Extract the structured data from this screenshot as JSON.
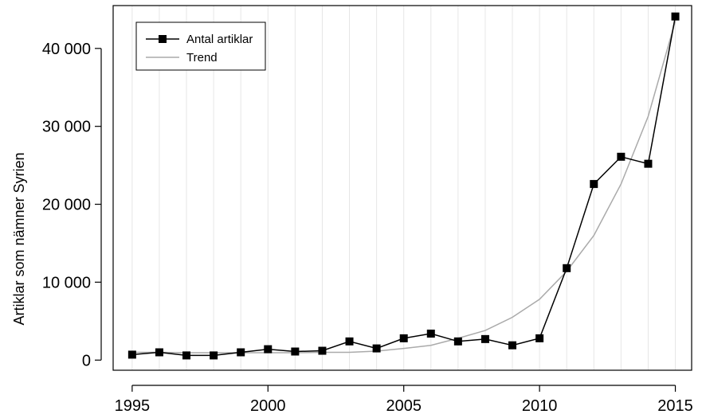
{
  "chart_data": {
    "type": "line",
    "title": "",
    "xlabel": "",
    "ylabel": "Artiklar som nämner Syrien",
    "x": [
      1995,
      1996,
      1997,
      1998,
      1999,
      2000,
      2001,
      2002,
      2003,
      2004,
      2005,
      2006,
      2007,
      2008,
      2009,
      2010,
      2011,
      2012,
      2013,
      2014,
      2015
    ],
    "series": [
      {
        "name": "Antal artiklar",
        "color": "#000000",
        "marker": "square",
        "values": [
          700,
          1000,
          600,
          600,
          1000,
          1400,
          1100,
          1200,
          2400,
          1500,
          2800,
          3400,
          2400,
          2700,
          1900,
          2800,
          11800,
          22600,
          26100,
          25200,
          44100
        ]
      },
      {
        "name": "Trend",
        "color": "#aaaaaa",
        "marker": "none",
        "values": [
          1000,
          1000,
          950,
          950,
          950,
          950,
          950,
          1000,
          1000,
          1150,
          1500,
          1900,
          2800,
          3800,
          5500,
          7800,
          11400,
          16000,
          22600,
          31300,
          43500
        ]
      }
    ],
    "xlim": [
      1994.3,
      2015.6
    ],
    "ylim": [
      -1300,
      45500
    ],
    "xticks": [
      1995,
      2000,
      2005,
      2010,
      2015
    ],
    "yticks": [
      0,
      10000,
      20000,
      30000,
      40000
    ],
    "ytick_labels": [
      "0",
      "10 000",
      "20 000",
      "30 000",
      "40 000"
    ],
    "xtick_labels": [
      "1995",
      "2000",
      "2005",
      "2010",
      "2015"
    ],
    "grid": "vertical lines at each year",
    "grid_color": "#e6e6e6",
    "legend_position": "top-left"
  }
}
